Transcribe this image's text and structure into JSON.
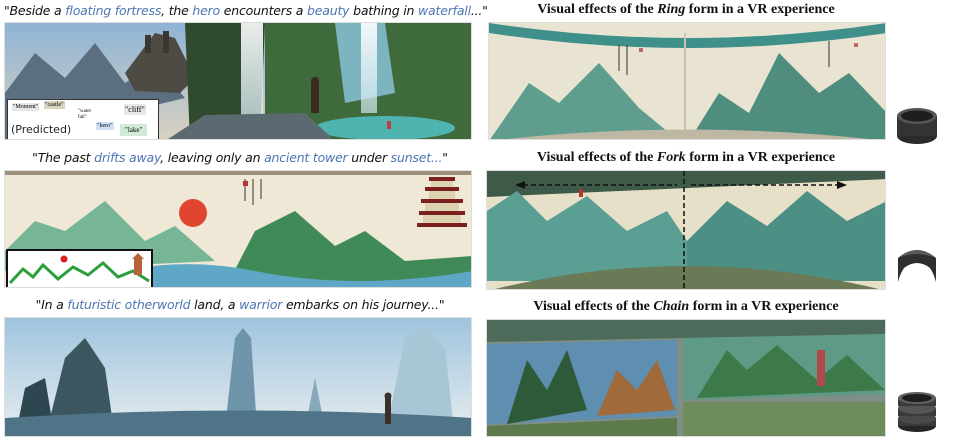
{
  "rows": [
    {
      "caption": {
        "open": "\"Beside a ",
        "k1": "floating fortress",
        "t1": ", the ",
        "k2": "hero",
        "t2": " encounters a ",
        "k3": "beauty",
        "t3": " bathing in ",
        "k4": "waterfall",
        "close": "...\""
      },
      "inset": {
        "tags": [
          "\"Moment\"",
          "\"castle\"",
          "\"water fall\"",
          "\"cliff\"",
          "\"hero\"",
          "\"lake\""
        ],
        "predicted": "(Predicted)"
      },
      "vr": {
        "pre": "Visual effects of the ",
        "form": "Ring",
        "post": " form in a VR experience"
      },
      "shape_icon": "ring-shape-icon"
    },
    {
      "caption": {
        "open": "\"The past ",
        "k1": "drifts away",
        "t1": ", leaving only an ",
        "k2": "ancient tower",
        "t2": " under ",
        "k3": "sunset...",
        "close": "\""
      },
      "vr": {
        "pre": "Visual effects of the ",
        "form": "Fork",
        "post": " form in a VR experience"
      },
      "shape_icon": "fork-shape-icon"
    },
    {
      "caption": {
        "open": "\"In a ",
        "k1": "futuristic otherworld",
        "t1": " land, a ",
        "k2": "warrior",
        "t2": " embarks on his journey...\""
      },
      "vr": {
        "pre": "Visual effects of the ",
        "form": "Chain",
        "post": " form in a VR experience"
      },
      "shape_icon": "chain-shape-icon"
    }
  ]
}
